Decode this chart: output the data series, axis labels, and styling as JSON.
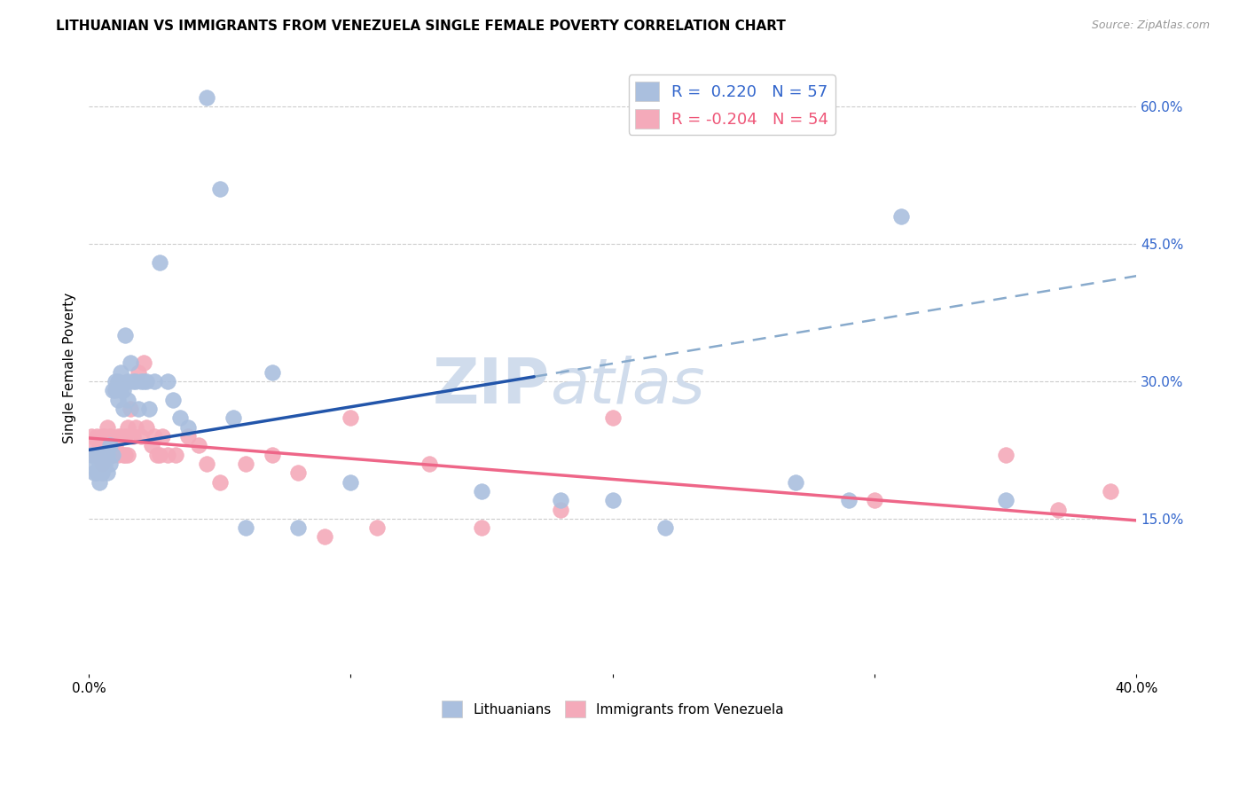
{
  "title": "LITHUANIAN VS IMMIGRANTS FROM VENEZUELA SINGLE FEMALE POVERTY CORRELATION CHART",
  "source": "Source: ZipAtlas.com",
  "ylabel": "Single Female Poverty",
  "right_yticks": [
    "60.0%",
    "45.0%",
    "30.0%",
    "15.0%"
  ],
  "right_ytick_vals": [
    0.6,
    0.45,
    0.3,
    0.15
  ],
  "xlim": [
    0.0,
    0.4
  ],
  "ylim": [
    -0.02,
    0.65
  ],
  "blue_color": "#AABFDE",
  "pink_color": "#F4AABA",
  "blue_line_color": "#2255AA",
  "pink_line_color": "#EE6688",
  "dashed_line_color": "#88AACC",
  "watermark_color": "#D0DCEC",
  "blue_scatter_x": [
    0.001,
    0.002,
    0.002,
    0.003,
    0.003,
    0.004,
    0.004,
    0.005,
    0.005,
    0.006,
    0.006,
    0.007,
    0.007,
    0.008,
    0.008,
    0.009,
    0.009,
    0.01,
    0.01,
    0.011,
    0.011,
    0.012,
    0.012,
    0.013,
    0.013,
    0.014,
    0.015,
    0.015,
    0.016,
    0.017,
    0.018,
    0.019,
    0.02,
    0.021,
    0.022,
    0.023,
    0.025,
    0.027,
    0.03,
    0.032,
    0.035,
    0.038,
    0.045,
    0.05,
    0.055,
    0.06,
    0.07,
    0.08,
    0.1,
    0.15,
    0.18,
    0.2,
    0.22,
    0.27,
    0.29,
    0.31,
    0.35
  ],
  "blue_scatter_y": [
    0.22,
    0.21,
    0.2,
    0.22,
    0.2,
    0.21,
    0.19,
    0.22,
    0.2,
    0.22,
    0.21,
    0.22,
    0.2,
    0.23,
    0.21,
    0.29,
    0.22,
    0.29,
    0.3,
    0.3,
    0.28,
    0.31,
    0.29,
    0.29,
    0.27,
    0.35,
    0.3,
    0.28,
    0.32,
    0.3,
    0.3,
    0.27,
    0.3,
    0.3,
    0.3,
    0.27,
    0.3,
    0.43,
    0.3,
    0.28,
    0.26,
    0.25,
    0.61,
    0.51,
    0.26,
    0.14,
    0.31,
    0.14,
    0.19,
    0.18,
    0.17,
    0.17,
    0.14,
    0.19,
    0.17,
    0.48,
    0.17
  ],
  "pink_scatter_x": [
    0.001,
    0.002,
    0.002,
    0.003,
    0.003,
    0.004,
    0.005,
    0.005,
    0.006,
    0.007,
    0.007,
    0.008,
    0.009,
    0.01,
    0.011,
    0.011,
    0.012,
    0.013,
    0.014,
    0.014,
    0.015,
    0.015,
    0.016,
    0.017,
    0.018,
    0.019,
    0.02,
    0.021,
    0.022,
    0.024,
    0.025,
    0.026,
    0.027,
    0.028,
    0.03,
    0.033,
    0.038,
    0.042,
    0.045,
    0.05,
    0.06,
    0.07,
    0.08,
    0.09,
    0.1,
    0.11,
    0.13,
    0.15,
    0.18,
    0.2,
    0.3,
    0.35,
    0.37,
    0.39
  ],
  "pink_scatter_y": [
    0.24,
    0.23,
    0.22,
    0.24,
    0.22,
    0.23,
    0.24,
    0.21,
    0.24,
    0.25,
    0.23,
    0.24,
    0.22,
    0.23,
    0.22,
    0.24,
    0.24,
    0.22,
    0.22,
    0.24,
    0.22,
    0.25,
    0.27,
    0.24,
    0.25,
    0.31,
    0.24,
    0.32,
    0.25,
    0.23,
    0.24,
    0.22,
    0.22,
    0.24,
    0.22,
    0.22,
    0.24,
    0.23,
    0.21,
    0.19,
    0.21,
    0.22,
    0.2,
    0.13,
    0.26,
    0.14,
    0.21,
    0.14,
    0.16,
    0.26,
    0.17,
    0.22,
    0.16,
    0.18
  ],
  "blue_trend_x0": 0.0,
  "blue_trend_y0": 0.225,
  "blue_trend_x1": 0.17,
  "blue_trend_y1": 0.305,
  "pink_trend_x0": 0.0,
  "pink_trend_y0": 0.238,
  "pink_trend_x1": 0.4,
  "pink_trend_y1": 0.148,
  "dash_trend_x0": 0.17,
  "dash_trend_y0": 0.305,
  "dash_trend_x1": 0.4,
  "dash_trend_y1": 0.415
}
